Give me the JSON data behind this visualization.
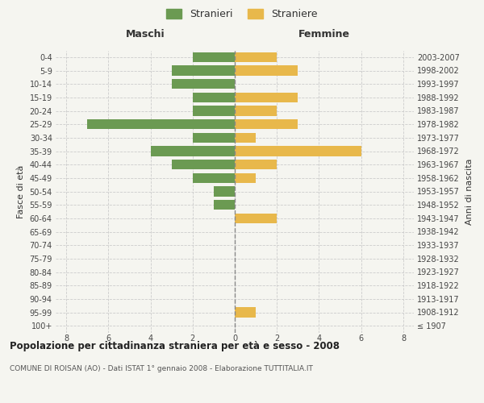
{
  "age_groups": [
    "100+",
    "95-99",
    "90-94",
    "85-89",
    "80-84",
    "75-79",
    "70-74",
    "65-69",
    "60-64",
    "55-59",
    "50-54",
    "45-49",
    "40-44",
    "35-39",
    "30-34",
    "25-29",
    "20-24",
    "15-19",
    "10-14",
    "5-9",
    "0-4"
  ],
  "birth_years": [
    "≤ 1907",
    "1908-1912",
    "1913-1917",
    "1918-1922",
    "1923-1927",
    "1928-1932",
    "1933-1937",
    "1938-1942",
    "1943-1947",
    "1948-1952",
    "1953-1957",
    "1958-1962",
    "1963-1967",
    "1968-1972",
    "1973-1977",
    "1978-1982",
    "1983-1987",
    "1988-1992",
    "1993-1997",
    "1998-2002",
    "2003-2007"
  ],
  "maschi": [
    0,
    0,
    0,
    0,
    0,
    0,
    0,
    0,
    0,
    1,
    1,
    2,
    3,
    4,
    2,
    7,
    2,
    2,
    3,
    3,
    2
  ],
  "femmine": [
    0,
    1,
    0,
    0,
    0,
    0,
    0,
    0,
    2,
    0,
    0,
    1,
    2,
    6,
    1,
    3,
    2,
    3,
    0,
    3,
    2
  ],
  "maschi_color": "#6b9a52",
  "femmine_color": "#e8b84b",
  "background_color": "#f5f5f0",
  "grid_color": "#cccccc",
  "title": "Popolazione per cittadinanza straniera per età e sesso - 2008",
  "subtitle": "COMUNE DI ROISAN (AO) - Dati ISTAT 1° gennaio 2008 - Elaborazione TUTTITALIA.IT",
  "xlabel_left": "Maschi",
  "xlabel_right": "Femmine",
  "ylabel_left": "Fasce di età",
  "ylabel_right": "Anni di nascita",
  "legend_maschi": "Stranieri",
  "legend_femmine": "Straniere",
  "xlim": 8.5,
  "bar_height": 0.75
}
